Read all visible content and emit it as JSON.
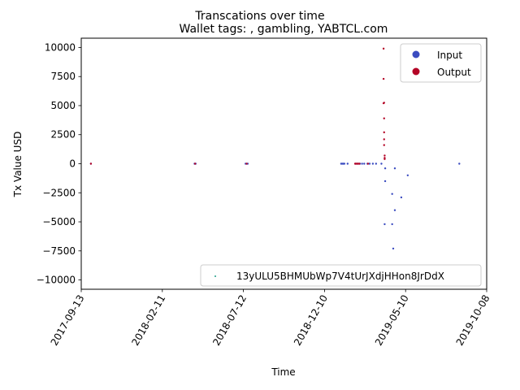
{
  "chart_data": {
    "type": "scatter",
    "suptitle": "Transcations over time",
    "title": "Wallet tags: , gambling, YABTCL.com",
    "xlabel": "Time",
    "ylabel": "Tx Value USD",
    "xlim": [
      "2017-09-13",
      "2019-10-08"
    ],
    "ylim": [
      -10800,
      10800
    ],
    "x_ticks": [
      "2017-09-13",
      "2018-02-11",
      "2018-07-12",
      "2018-12-10",
      "2019-05-10",
      "2019-10-08"
    ],
    "y_ticks": [
      10000,
      7500,
      5000,
      2500,
      0,
      -2500,
      -5000,
      -7500,
      -10000
    ],
    "y_tick_labels": [
      "10000",
      "7500",
      "5000",
      "2500",
      "0",
      "−2500",
      "−5000",
      "−7500",
      "−10000"
    ],
    "grid": false,
    "legend_markers": {
      "placement": "upper right",
      "entries": [
        {
          "label": "Input",
          "color": "#3b4cc0"
        },
        {
          "label": "Output",
          "color": "#b40426"
        }
      ]
    },
    "legend_address": {
      "placement": "lower right",
      "label": "13yULU5BHMUbWp7V4tUrJXdjHHon8JrDdX",
      "color": "#1f9e89"
    },
    "series": [
      {
        "name": "Input",
        "color": "#3b4cc0",
        "points": [
          [
            "2017-10-01",
            0
          ],
          [
            "2018-04-12",
            0
          ],
          [
            "2018-04-14",
            0
          ],
          [
            "2018-07-16",
            0
          ],
          [
            "2018-07-20",
            0
          ],
          [
            "2019-01-10",
            0
          ],
          [
            "2019-01-12",
            0
          ],
          [
            "2019-01-14",
            0
          ],
          [
            "2019-01-16",
            0
          ],
          [
            "2019-01-22",
            0
          ],
          [
            "2019-02-06",
            0
          ],
          [
            "2019-02-10",
            0
          ],
          [
            "2019-02-14",
            0
          ],
          [
            "2019-02-18",
            0
          ],
          [
            "2019-02-22",
            0
          ],
          [
            "2019-02-28",
            0
          ],
          [
            "2019-03-04",
            0
          ],
          [
            "2019-03-10",
            0
          ],
          [
            "2019-03-16",
            0
          ],
          [
            "2019-03-26",
            0
          ],
          [
            "2019-04-02",
            -400
          ],
          [
            "2019-04-02",
            -1500
          ],
          [
            "2019-04-01",
            -5200
          ],
          [
            "2019-04-15",
            -2600
          ],
          [
            "2019-04-20",
            -400
          ],
          [
            "2019-04-15",
            -5200
          ],
          [
            "2019-04-17",
            -7300
          ],
          [
            "2019-04-20",
            -4000
          ],
          [
            "2019-05-02",
            -2900
          ],
          [
            "2019-05-14",
            -1000
          ],
          [
            "2019-08-18",
            0
          ]
        ]
      },
      {
        "name": "Output",
        "color": "#b40426",
        "points": [
          [
            "2017-10-01",
            0
          ],
          [
            "2018-04-13",
            0
          ],
          [
            "2018-07-18",
            0
          ],
          [
            "2019-02-05",
            0
          ],
          [
            "2019-02-07",
            0
          ],
          [
            "2019-02-09",
            0
          ],
          [
            "2019-02-11",
            0
          ],
          [
            "2019-02-13",
            0
          ],
          [
            "2019-03-01",
            0
          ],
          [
            "2019-03-30",
            9900
          ],
          [
            "2019-03-30",
            7300
          ],
          [
            "2019-03-30",
            5200
          ],
          [
            "2019-03-31",
            5250
          ],
          [
            "2019-03-31",
            3900
          ],
          [
            "2019-03-31",
            2700
          ],
          [
            "2019-03-31",
            2100
          ],
          [
            "2019-03-31",
            1600
          ],
          [
            "2019-04-01",
            700
          ],
          [
            "2019-04-01",
            500
          ],
          [
            "2019-04-01",
            400
          ]
        ]
      }
    ]
  }
}
